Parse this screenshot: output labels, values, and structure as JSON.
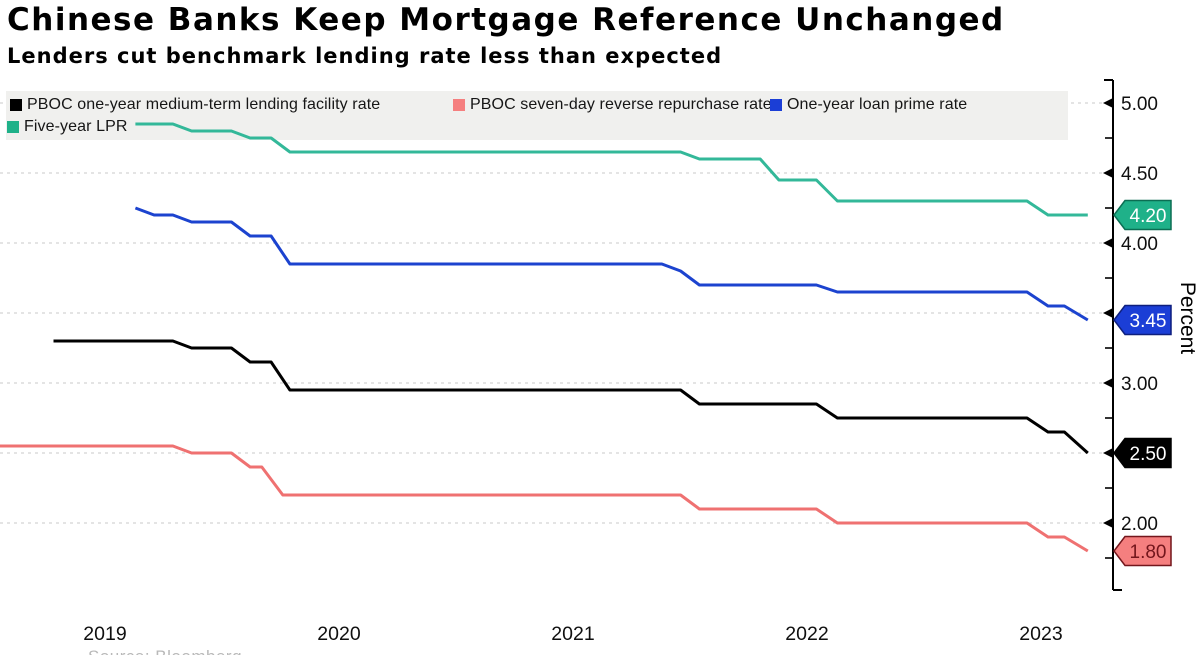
{
  "header": {
    "title": "Chinese Banks Keep Mortgage Reference Unchanged",
    "subtitle": "Lenders cut benchmark lending rate less than expected"
  },
  "legend": {
    "items": [
      {
        "label": "PBOC one-year medium-term lending facility rate",
        "color": "#000000"
      },
      {
        "label": "PBOC seven-day reverse repurchase rate",
        "color": "#f57f7f"
      },
      {
        "label": "One-year loan prime rate",
        "color": "#1b3ed6"
      },
      {
        "label": "Five-year LPR",
        "color": "#1fb189"
      }
    ]
  },
  "footer": {
    "source": "Source: Bloomberg"
  },
  "chart_data": {
    "type": "line",
    "title": "Chinese Banks Keep Mortgage Reference Unchanged",
    "subtitle": "Lenders cut benchmark lending rate less than expected",
    "ylabel": "Percent",
    "xlabel": "",
    "ylim": [
      1.55,
      5.15
    ],
    "xlim_years": [
      2019.05,
      2023.85
    ],
    "grid": "horizontal-dashed",
    "legend_position": "top",
    "y_major_ticks": [
      {
        "value": 5.0,
        "label": "5.00"
      },
      {
        "value": 4.5,
        "label": "4.50"
      },
      {
        "value": 4.0,
        "label": "4.00"
      },
      {
        "value": 3.5,
        "label": "3.50"
      },
      {
        "value": 3.0,
        "label": "3.00"
      },
      {
        "value": 2.5,
        "label": "2.50"
      },
      {
        "value": 2.0,
        "label": "2.00"
      }
    ],
    "y_minor_tick_values": [
      4.75,
      4.25,
      3.75,
      3.25,
      2.75,
      2.25,
      1.75
    ],
    "x_tick_labels": [
      "2019",
      "2020",
      "2021",
      "2022",
      "2023"
    ],
    "end_labels": [
      {
        "text": "4.20",
        "value": 4.2,
        "fill": "#1fb189",
        "text_color": "#ffffff",
        "border": "#0b6e53"
      },
      {
        "text": "3.45",
        "value": 3.45,
        "fill": "#1b3ed6",
        "text_color": "#ffffff",
        "border": "#0e1f7e"
      },
      {
        "text": "2.50",
        "value": 2.5,
        "fill": "#000000",
        "text_color": "#ffffff",
        "border": "#000000"
      },
      {
        "text": "1.80",
        "value": 1.8,
        "fill": "#f57f7f",
        "text_color": "#73161c",
        "border": "#73161c"
      }
    ],
    "series": [
      {
        "name": "PBOC one-year medium-term lending facility rate",
        "color": "#000000",
        "points": [
          [
            2019.28,
            3.3
          ],
          [
            2019.79,
            3.3
          ],
          [
            2019.87,
            3.25
          ],
          [
            2020.04,
            3.25
          ],
          [
            2020.12,
            3.15
          ],
          [
            2020.21,
            3.15
          ],
          [
            2020.29,
            2.95
          ],
          [
            2021.96,
            2.95
          ],
          [
            2022.04,
            2.85
          ],
          [
            2022.54,
            2.85
          ],
          [
            2022.63,
            2.75
          ],
          [
            2023.44,
            2.75
          ],
          [
            2023.53,
            2.65
          ],
          [
            2023.6,
            2.65
          ],
          [
            2023.7,
            2.5
          ]
        ]
      },
      {
        "name": "PBOC seven-day reverse repurchase rate",
        "color": "#ef7171",
        "points": [
          [
            2019.05,
            2.55
          ],
          [
            2019.79,
            2.55
          ],
          [
            2019.87,
            2.5
          ],
          [
            2020.04,
            2.5
          ],
          [
            2020.12,
            2.4
          ],
          [
            2020.17,
            2.4
          ],
          [
            2020.26,
            2.2
          ],
          [
            2021.96,
            2.2
          ],
          [
            2022.04,
            2.1
          ],
          [
            2022.54,
            2.1
          ],
          [
            2022.63,
            2.0
          ],
          [
            2023.44,
            2.0
          ],
          [
            2023.53,
            1.9
          ],
          [
            2023.6,
            1.9
          ],
          [
            2023.7,
            1.8
          ]
        ]
      },
      {
        "name": "One-year loan prime rate",
        "color": "#1c43cf",
        "points": [
          [
            2019.63,
            4.25
          ],
          [
            2019.71,
            4.2
          ],
          [
            2019.79,
            4.2
          ],
          [
            2019.87,
            4.15
          ],
          [
            2020.04,
            4.15
          ],
          [
            2020.12,
            4.05
          ],
          [
            2020.21,
            4.05
          ],
          [
            2020.29,
            3.85
          ],
          [
            2021.88,
            3.85
          ],
          [
            2021.96,
            3.8
          ],
          [
            2022.04,
            3.7
          ],
          [
            2022.54,
            3.7
          ],
          [
            2022.63,
            3.65
          ],
          [
            2023.44,
            3.65
          ],
          [
            2023.53,
            3.55
          ],
          [
            2023.6,
            3.55
          ],
          [
            2023.7,
            3.45
          ]
        ]
      },
      {
        "name": "Five-year LPR",
        "color": "#33b899",
        "points": [
          [
            2019.63,
            4.85
          ],
          [
            2019.79,
            4.85
          ],
          [
            2019.87,
            4.8
          ],
          [
            2020.04,
            4.8
          ],
          [
            2020.12,
            4.75
          ],
          [
            2020.21,
            4.75
          ],
          [
            2020.29,
            4.65
          ],
          [
            2021.96,
            4.65
          ],
          [
            2022.04,
            4.6
          ],
          [
            2022.3,
            4.6
          ],
          [
            2022.38,
            4.45
          ],
          [
            2022.54,
            4.45
          ],
          [
            2022.63,
            4.3
          ],
          [
            2023.44,
            4.3
          ],
          [
            2023.53,
            4.2
          ],
          [
            2023.7,
            4.2
          ]
        ]
      }
    ]
  }
}
